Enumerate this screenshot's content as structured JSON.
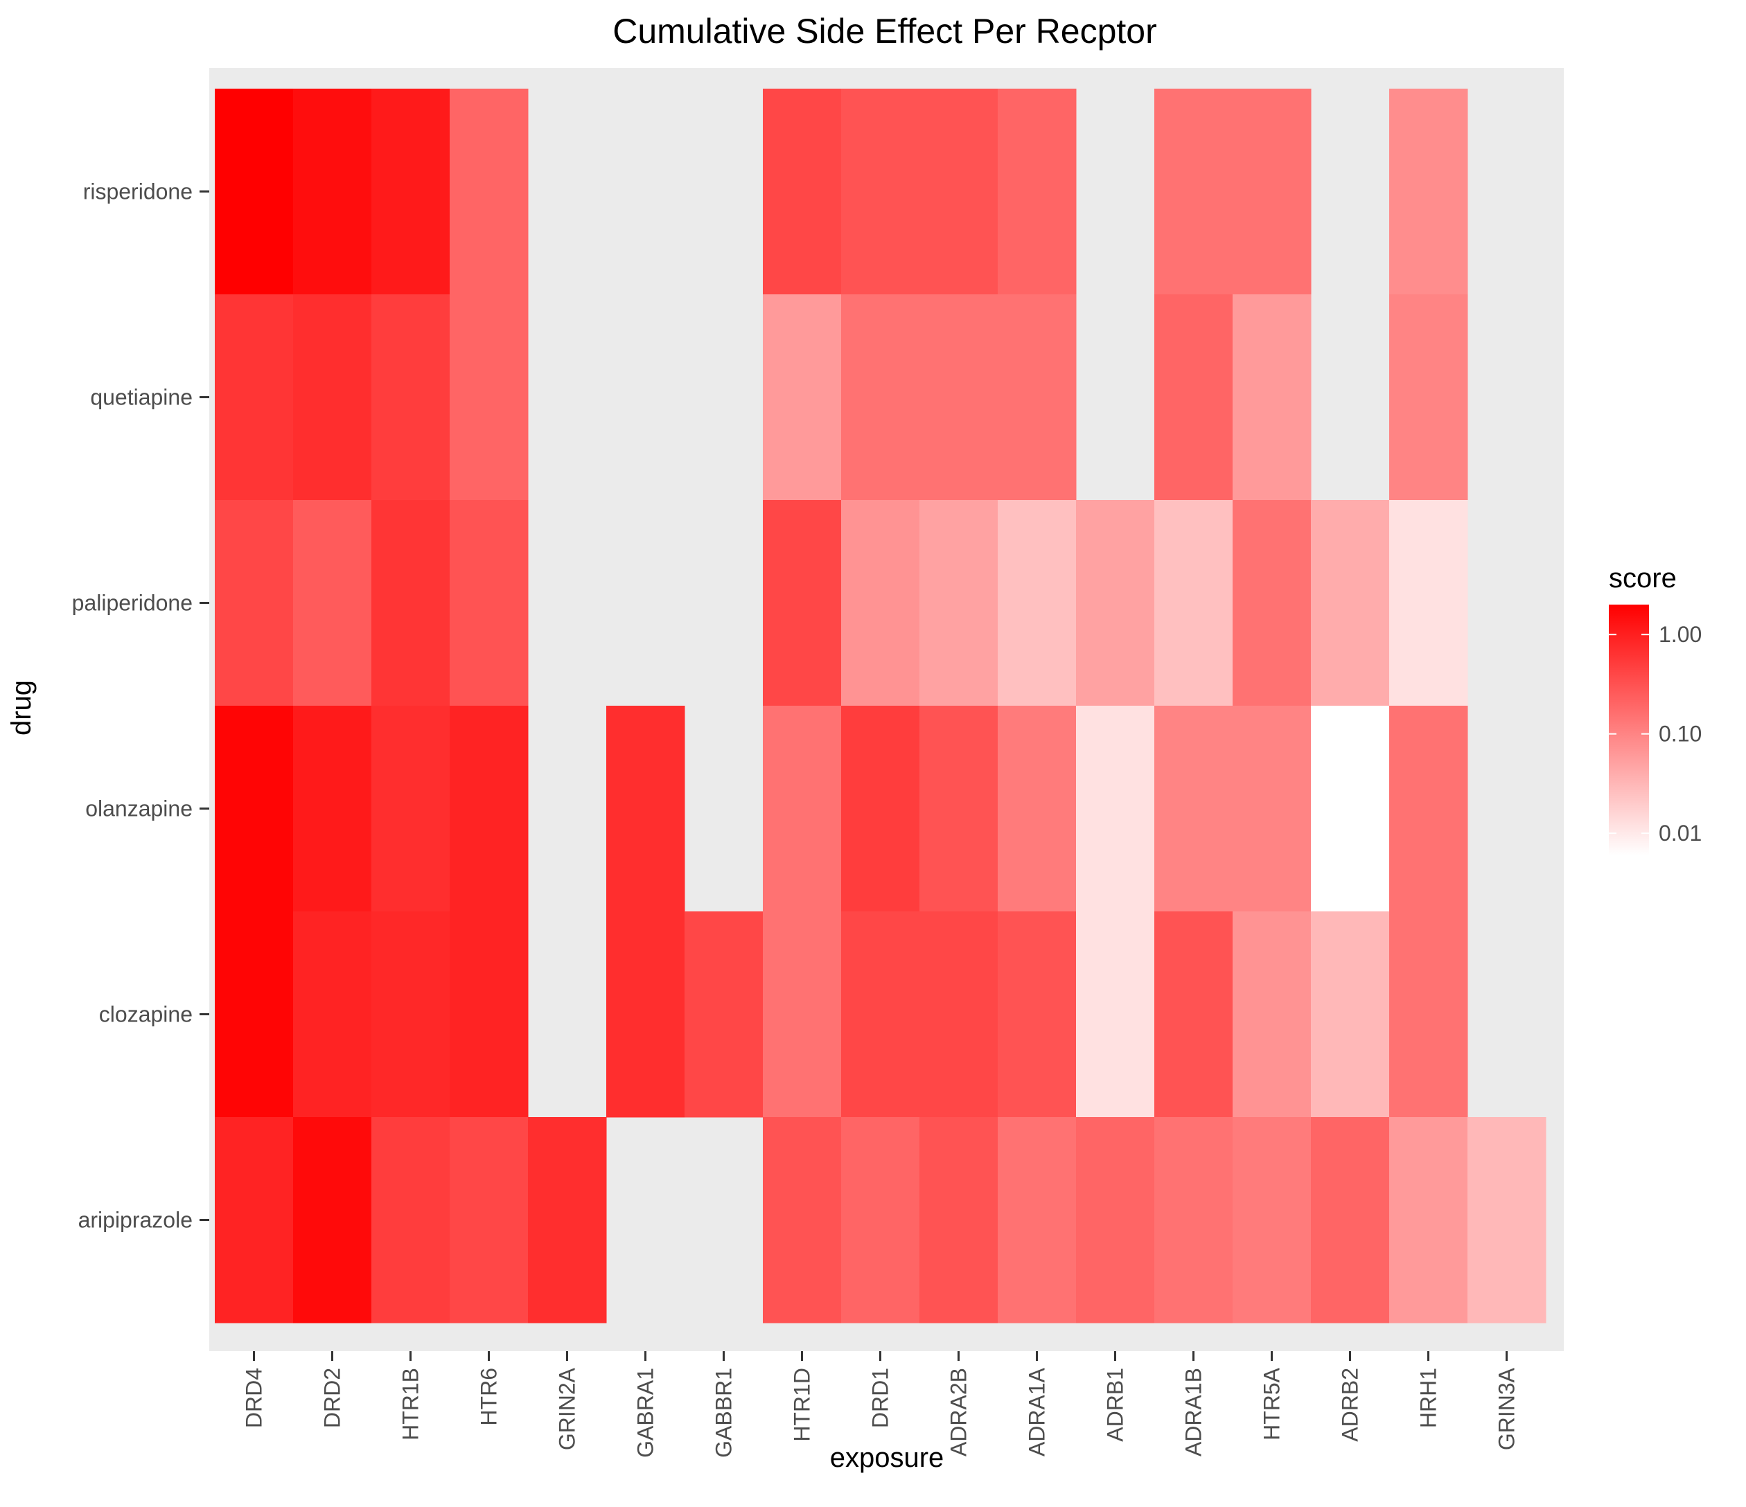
{
  "chart_data": {
    "type": "heatmap",
    "title": "Cumulative Side Effect Per Recptor",
    "xlabel": "exposure",
    "ylabel": "drug",
    "x_categories": [
      "DRD4",
      "DRD2",
      "HTR1B",
      "HTR6",
      "GRIN2A",
      "GABRA1",
      "GABBR1",
      "HTR1D",
      "DRD1",
      "ADRA2B",
      "ADRA1A",
      "ADRB1",
      "ADRA1B",
      "HTR5A",
      "ADRB2",
      "HRH1",
      "GRIN3A"
    ],
    "y_categories": [
      "risperidone",
      "quetiapine",
      "paliperidone",
      "olanzapine",
      "clozapine",
      "aripiprazole"
    ],
    "values": [
      [
        2.0,
        1.5,
        1.1,
        0.2,
        null,
        null,
        null,
        0.4,
        0.3,
        0.3,
        0.2,
        null,
        0.15,
        0.15,
        null,
        0.08,
        null
      ],
      [
        0.6,
        0.7,
        0.5,
        0.2,
        null,
        null,
        null,
        0.06,
        0.15,
        0.15,
        0.15,
        null,
        0.2,
        0.06,
        null,
        0.1,
        null
      ],
      [
        0.4,
        0.25,
        0.6,
        0.3,
        null,
        null,
        null,
        0.4,
        0.07,
        0.05,
        0.025,
        0.05,
        0.025,
        0.15,
        0.04,
        0.012,
        null
      ],
      [
        1.8,
        1.1,
        0.7,
        0.9,
        null,
        0.7,
        null,
        0.15,
        0.5,
        0.3,
        0.12,
        0.012,
        0.1,
        0.1,
        0.006,
        0.15,
        null
      ],
      [
        1.8,
        0.9,
        0.8,
        0.9,
        null,
        0.7,
        0.4,
        0.15,
        0.4,
        0.4,
        0.3,
        0.012,
        0.3,
        0.07,
        0.03,
        0.15,
        null
      ],
      [
        0.9,
        1.6,
        0.5,
        0.4,
        0.7,
        null,
        null,
        0.3,
        0.2,
        0.3,
        0.15,
        0.2,
        0.15,
        0.12,
        0.2,
        0.06,
        0.03
      ]
    ],
    "color_scale": {
      "type": "log10",
      "low": "#ffffff",
      "high": "#ff0000",
      "domain": [
        0.006,
        2.0
      ]
    },
    "na_color": "#ebebeb",
    "legend": {
      "title": "score",
      "breaks": [
        1.0,
        0.1,
        0.01
      ],
      "labels": [
        "1.00",
        "0.10",
        "0.01"
      ],
      "position": "right"
    },
    "panel_background": "#ebebeb",
    "grid": false
  }
}
